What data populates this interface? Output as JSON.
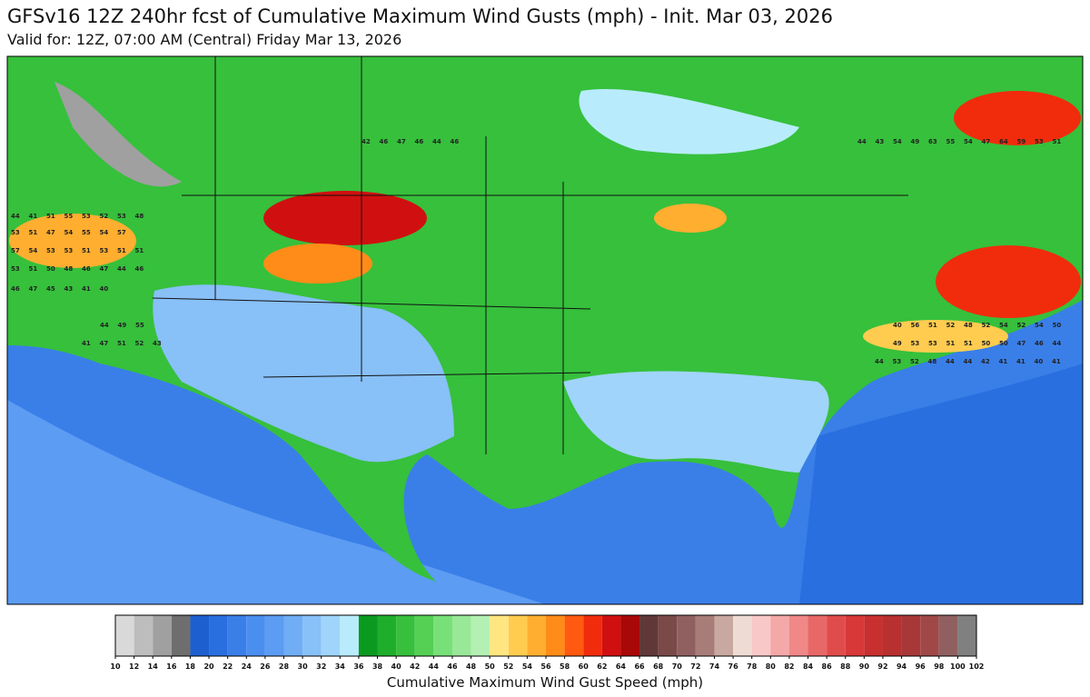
{
  "header": {
    "title": "GFSv16 12Z 240hr fcst of Cumulative Maximum Wind Gusts (mph) - Init. Mar 03, 2026",
    "subtitle": "Valid for: 12Z, 07:00 AM (Central) Friday Mar 13, 2026"
  },
  "gust_labels": [
    [
      42,
      46,
      47,
      46,
      44,
      46
    ],
    [
      44,
      43,
      54,
      49,
      63,
      55,
      54,
      47,
      64,
      59,
      53,
      51
    ],
    [
      44,
      41,
      51,
      55,
      53,
      52,
      53,
      48
    ],
    [
      53,
      51,
      47,
      54,
      55,
      54,
      57
    ],
    [
      57,
      54,
      53,
      53,
      51,
      53,
      51,
      51
    ],
    [
      53,
      51,
      50,
      48,
      46,
      47,
      44,
      46
    ],
    [
      46,
      47,
      45,
      43,
      41,
      40
    ],
    [
      44,
      49,
      55
    ],
    [
      41,
      47,
      51,
      52,
      43
    ],
    [
      40,
      56,
      51,
      52,
      48,
      52,
      54,
      52,
      54,
      50
    ],
    [
      49,
      53,
      53,
      51,
      51,
      50,
      50,
      47,
      46,
      44
    ],
    [
      44,
      53,
      52,
      48,
      44,
      44,
      42,
      41,
      41,
      40,
      41
    ]
  ],
  "colorbar": {
    "label": "Cumulative Maximum Wind Gust Speed (mph)",
    "ticks": [
      10,
      12,
      14,
      16,
      18,
      20,
      22,
      24,
      26,
      28,
      30,
      32,
      34,
      36,
      38,
      40,
      42,
      44,
      46,
      48,
      50,
      52,
      54,
      56,
      58,
      60,
      62,
      64,
      66,
      68,
      70,
      72,
      74,
      76,
      78,
      80,
      82,
      84,
      86,
      88,
      90,
      92,
      94,
      96,
      98,
      100,
      102
    ],
    "colors": [
      "#d9d9d9",
      "#bdbdbd",
      "#a0a0a0",
      "#6e6e6e",
      "#1e5fd0",
      "#2a6fe0",
      "#3a7fe8",
      "#4a8ef0",
      "#5c9cf2",
      "#70adf5",
      "#88c0f8",
      "#a0d4fa",
      "#b8ecfc",
      "#0a9a20",
      "#1fae2c",
      "#36c03c",
      "#55d055",
      "#78e078",
      "#98e898",
      "#b4f0b4",
      "#ffe680",
      "#ffcc50",
      "#ffae30",
      "#ff8c18",
      "#ff5a10",
      "#f02c0c",
      "#d01010",
      "#a80808",
      "#603838",
      "#7a4a48",
      "#906060",
      "#a87c78",
      "#c8a8a0",
      "#eedcd4",
      "#f8c8c8",
      "#f4a8a8",
      "#f08888",
      "#e86868",
      "#e04c4c",
      "#d83838",
      "#c83030",
      "#b83030",
      "#a83838",
      "#a04848",
      "#906060",
      "#808080"
    ]
  }
}
